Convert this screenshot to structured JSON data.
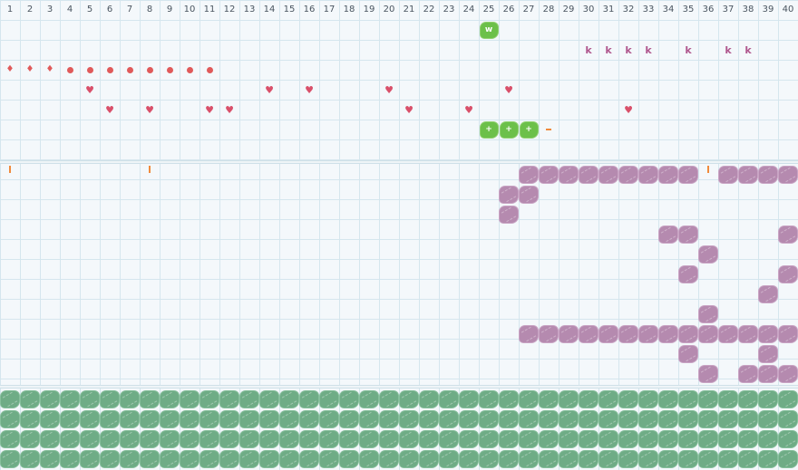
{
  "columns": [
    "1",
    "2",
    "3",
    "4",
    "5",
    "6",
    "7",
    "8",
    "9",
    "10",
    "11",
    "12",
    "13",
    "14",
    "15",
    "16",
    "17",
    "18",
    "19",
    "20",
    "21",
    "22",
    "23",
    "24",
    "25",
    "26",
    "27",
    "28",
    "29",
    "30",
    "31",
    "32",
    "33",
    "34",
    "35",
    "36",
    "37",
    "38",
    "39",
    "40"
  ],
  "colors": {
    "purple": "#b58aaf",
    "sage": "#6fac86",
    "bright_green": "#6cc04a",
    "red": "#e05a5a",
    "magenta_k": "#b0588e",
    "orange": "#f08a3c"
  },
  "stats": {
    "rows": [
      {
        "name": "w-badge-row",
        "items": [
          {
            "col": 25,
            "kind": "badge",
            "label": "w"
          }
        ]
      },
      {
        "name": "k-row",
        "items": [
          {
            "col": 30,
            "kind": "k",
            "label": "k"
          },
          {
            "col": 31,
            "kind": "k",
            "label": "k"
          },
          {
            "col": 32,
            "kind": "k",
            "label": "k"
          },
          {
            "col": 33,
            "kind": "k",
            "label": "k"
          },
          {
            "col": 35,
            "kind": "k",
            "label": "k"
          },
          {
            "col": 37,
            "kind": "k",
            "label": "k"
          },
          {
            "col": 38,
            "kind": "k",
            "label": "k"
          }
        ]
      },
      {
        "name": "drop-dot-row",
        "items": [
          {
            "col": 1,
            "kind": "drop"
          },
          {
            "col": 2,
            "kind": "drop"
          },
          {
            "col": 3,
            "kind": "drop"
          },
          {
            "col": 4,
            "kind": "dot"
          },
          {
            "col": 5,
            "kind": "dot"
          },
          {
            "col": 6,
            "kind": "dot"
          },
          {
            "col": 7,
            "kind": "dot"
          },
          {
            "col": 8,
            "kind": "dot"
          },
          {
            "col": 9,
            "kind": "dot"
          },
          {
            "col": 10,
            "kind": "dot"
          },
          {
            "col": 11,
            "kind": "dot"
          }
        ]
      },
      {
        "name": "heart-row-a",
        "items": [
          {
            "col": 5,
            "kind": "heart"
          },
          {
            "col": 14,
            "kind": "heart"
          },
          {
            "col": 16,
            "kind": "heart"
          },
          {
            "col": 20,
            "kind": "heart"
          },
          {
            "col": 26,
            "kind": "heart"
          }
        ]
      },
      {
        "name": "heart-row-b",
        "items": [
          {
            "col": 6,
            "kind": "heart"
          },
          {
            "col": 8,
            "kind": "heart"
          },
          {
            "col": 11,
            "kind": "heart"
          },
          {
            "col": 12,
            "kind": "heart"
          },
          {
            "col": 21,
            "kind": "heart"
          },
          {
            "col": 24,
            "kind": "heart"
          },
          {
            "col": 32,
            "kind": "heart"
          }
        ]
      },
      {
        "name": "plus-row",
        "items": [
          {
            "col": 25,
            "kind": "badge",
            "label": "+"
          },
          {
            "col": 26,
            "kind": "badge",
            "label": "+"
          },
          {
            "col": 27,
            "kind": "badge",
            "label": "+"
          },
          {
            "col": 28,
            "kind": "dash"
          }
        ]
      },
      {
        "name": "empty-row",
        "items": []
      },
      {
        "name": "tick-row",
        "items": [
          {
            "col": 1,
            "kind": "tick"
          },
          {
            "col": 8,
            "kind": "tick"
          },
          {
            "col": 36,
            "kind": "tick"
          },
          {
            "col": 38,
            "kind": "tick"
          },
          {
            "col": 40,
            "kind": "tick"
          }
        ]
      }
    ]
  },
  "board": {
    "purple_cells": [
      [
        1,
        [
          27,
          28,
          29,
          30,
          31,
          32,
          33,
          34,
          35,
          37,
          38,
          39,
          40
        ]
      ],
      [
        2,
        [
          26,
          27
        ]
      ],
      [
        3,
        [
          26
        ]
      ],
      [
        4,
        [
          34,
          35,
          40
        ]
      ],
      [
        5,
        [
          36
        ]
      ],
      [
        6,
        [
          35,
          40
        ]
      ],
      [
        7,
        [
          39
        ]
      ],
      [
        8,
        [
          36
        ]
      ],
      [
        9,
        [
          27,
          28,
          29,
          30,
          31,
          32,
          33,
          34,
          35,
          36,
          37,
          38,
          39,
          40
        ]
      ],
      [
        10,
        [
          35,
          39
        ]
      ],
      [
        11,
        [
          36,
          38,
          39,
          40
        ]
      ]
    ]
  },
  "tray": {
    "rows": 4,
    "cols": 40
  }
}
